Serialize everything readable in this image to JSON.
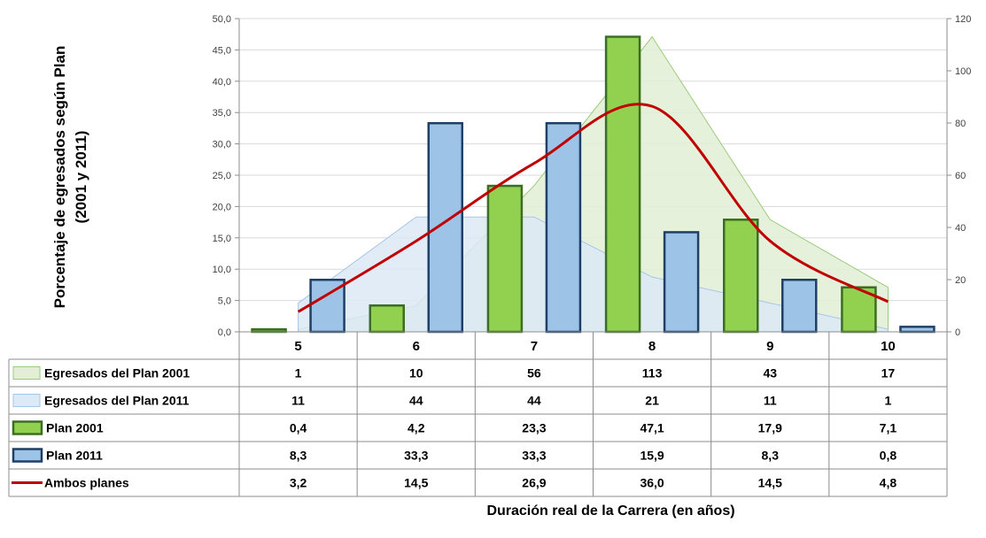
{
  "chart_data": {
    "type": "bar",
    "ylabel_line1": "Porcentaje de egresados  según Plan",
    "ylabel_line2": "(2001 y 2011)",
    "xlabel": "Duración real de la Carrera (en años)",
    "categories": [
      "5",
      "6",
      "7",
      "8",
      "9",
      "10"
    ],
    "y_left": {
      "min": 0,
      "max": 50,
      "step": 5,
      "ticks": [
        "0,0",
        "5,0",
        "10,0",
        "15,0",
        "20,0",
        "25,0",
        "30,0",
        "35,0",
        "40,0",
        "45,0",
        "50,0"
      ]
    },
    "y_right": {
      "min": 0,
      "max": 120,
      "step": 20,
      "ticks": [
        "0",
        "20",
        "40",
        "60",
        "80",
        "100",
        "120"
      ]
    },
    "grid": true,
    "legend_placement": "data-table-left",
    "series": [
      {
        "name": "Egresados del Plan 2001",
        "kind": "area",
        "axis": "right",
        "values": [
          1,
          10,
          56,
          113,
          43,
          17
        ],
        "labels": [
          "1",
          "10",
          "56",
          "113",
          "43",
          "17"
        ],
        "fill": "#e2efd6",
        "stroke": "#9bcb7a"
      },
      {
        "name": "Egresados del Plan 2011",
        "kind": "area",
        "axis": "right",
        "values": [
          11,
          44,
          44,
          21,
          11,
          1
        ],
        "labels": [
          "11",
          "44",
          "44",
          "21",
          "11",
          "1"
        ],
        "fill": "#dce9f6",
        "stroke": "#a7c6e6"
      },
      {
        "name": "Plan 2001",
        "kind": "bar",
        "axis": "left",
        "values": [
          0.4,
          4.2,
          23.3,
          47.1,
          17.9,
          7.1
        ],
        "labels": [
          "0,4",
          "4,2",
          "23,3",
          "47,1",
          "17,9",
          "7,1"
        ],
        "fill": "#92d050",
        "stroke": "#3b6e22"
      },
      {
        "name": "Plan 2011",
        "kind": "bar",
        "axis": "left",
        "values": [
          8.3,
          33.3,
          33.3,
          15.9,
          8.3,
          0.8
        ],
        "labels": [
          "8,3",
          "33,3",
          "33,3",
          "15,9",
          "8,3",
          "0,8"
        ],
        "fill": "#9dc3e6",
        "stroke": "#1f3f66"
      },
      {
        "name": "Ambos planes",
        "kind": "line",
        "axis": "left",
        "values": [
          3.2,
          14.5,
          26.9,
          36.0,
          14.5,
          4.8
        ],
        "labels": [
          "3,2",
          "14,5",
          "26,9",
          "36,0",
          "14,5",
          "4,8"
        ],
        "color": "#c00000"
      }
    ]
  }
}
